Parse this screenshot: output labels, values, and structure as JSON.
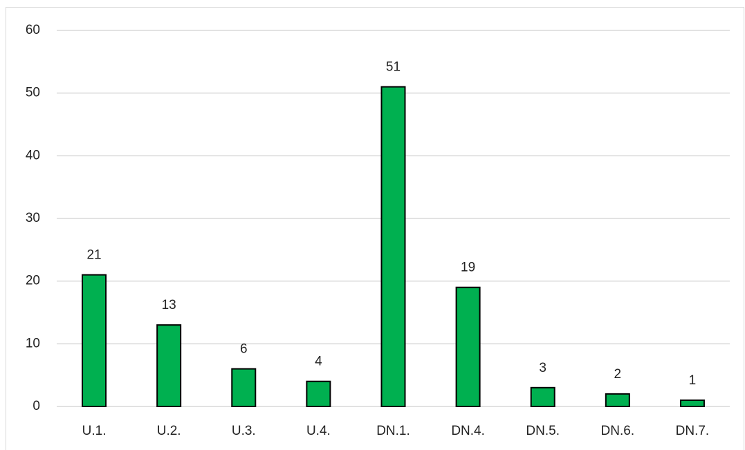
{
  "chart_data": {
    "type": "bar",
    "categories": [
      "U.1.",
      "U.2.",
      "U.3.",
      "U.4.",
      "DN.1.",
      "DN.4.",
      "DN.5.",
      "DN.6.",
      "DN.7."
    ],
    "values": [
      21,
      13,
      6,
      4,
      51,
      19,
      3,
      2,
      1
    ],
    "color": "#00b050",
    "ylim": [
      0,
      60
    ],
    "yticks": [
      0,
      10,
      20,
      30,
      40,
      50,
      60
    ],
    "grid": true,
    "data_labels": true
  }
}
